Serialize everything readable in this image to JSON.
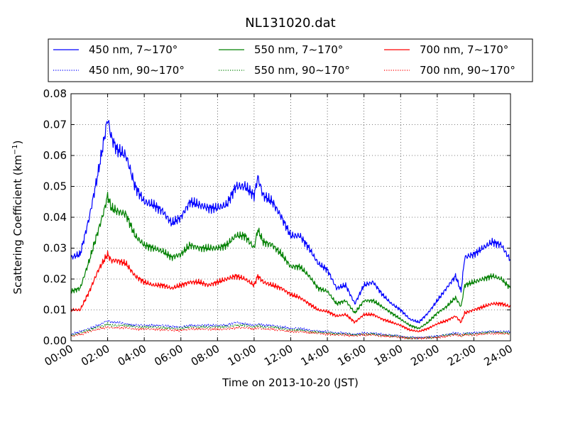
{
  "chart_data": {
    "type": "line",
    "title": "NL131020.dat",
    "xlabel": "Time on 2013-10-20 (JST)",
    "ylabel": "Scattering Coefficient (km",
    "ylabel_sup": "−1",
    "ylabel_close": ")",
    "xlim": [
      0,
      24
    ],
    "ylim": [
      0,
      0.08
    ],
    "grid": true,
    "legend_position": "top (above plot)",
    "x_ticks": [
      0,
      2,
      4,
      6,
      8,
      10,
      12,
      14,
      16,
      18,
      20,
      22,
      24
    ],
    "x_tick_labels": [
      "00:00",
      "02:00",
      "04:00",
      "06:00",
      "08:00",
      "10:00",
      "12:00",
      "14:00",
      "16:00",
      "18:00",
      "20:00",
      "22:00",
      "24:00"
    ],
    "y_ticks": [
      0,
      0.01,
      0.02,
      0.03,
      0.04,
      0.05,
      0.06,
      0.07,
      0.08
    ],
    "y_tick_labels": [
      "0.00",
      "0.01",
      "0.02",
      "0.03",
      "0.04",
      "0.05",
      "0.06",
      "0.07",
      "0.08"
    ],
    "x": [
      0,
      0.5,
      1,
      1.5,
      1.8,
      2,
      2.2,
      2.5,
      3,
      3.5,
      4,
      4.5,
      5,
      5.5,
      6,
      6.5,
      7,
      7.5,
      8,
      8.5,
      9,
      9.5,
      10,
      10.2,
      10.5,
      11,
      11.5,
      12,
      12.5,
      13,
      13.5,
      14,
      14.5,
      15,
      15.5,
      16,
      16.5,
      17,
      17.5,
      18,
      18.5,
      19,
      19.5,
      20,
      20.5,
      21,
      21.3,
      21.5,
      22,
      22.5,
      23,
      23.5,
      24
    ],
    "series": [
      {
        "name": "450 nm, 7∼170°",
        "color": "#0000ff",
        "style": "solid",
        "values": [
          0.027,
          0.028,
          0.04,
          0.055,
          0.065,
          0.072,
          0.066,
          0.062,
          0.06,
          0.05,
          0.045,
          0.044,
          0.042,
          0.038,
          0.04,
          0.045,
          0.044,
          0.043,
          0.043,
          0.044,
          0.05,
          0.05,
          0.047,
          0.053,
          0.047,
          0.045,
          0.04,
          0.034,
          0.034,
          0.03,
          0.025,
          0.023,
          0.017,
          0.018,
          0.012,
          0.018,
          0.019,
          0.015,
          0.012,
          0.01,
          0.007,
          0.006,
          0.009,
          0.013,
          0.017,
          0.021,
          0.016,
          0.027,
          0.028,
          0.03,
          0.032,
          0.031,
          0.026
        ]
      },
      {
        "name": "450 nm, 90∼170°",
        "color": "#0000ff",
        "style": "dotted",
        "values": [
          0.002,
          0.003,
          0.004,
          0.005,
          0.006,
          0.0065,
          0.006,
          0.006,
          0.0055,
          0.005,
          0.005,
          0.005,
          0.005,
          0.0045,
          0.0045,
          0.005,
          0.005,
          0.005,
          0.005,
          0.005,
          0.006,
          0.0055,
          0.005,
          0.0055,
          0.005,
          0.005,
          0.0045,
          0.004,
          0.004,
          0.0035,
          0.003,
          0.003,
          0.0025,
          0.0025,
          0.002,
          0.0025,
          0.0025,
          0.002,
          0.0018,
          0.0015,
          0.001,
          0.001,
          0.0012,
          0.0015,
          0.002,
          0.0025,
          0.002,
          0.0025,
          0.0025,
          0.0028,
          0.003,
          0.003,
          0.0028
        ]
      },
      {
        "name": "550 nm, 7∼170°",
        "color": "#008000",
        "style": "solid",
        "values": [
          0.016,
          0.017,
          0.026,
          0.036,
          0.042,
          0.047,
          0.043,
          0.042,
          0.041,
          0.034,
          0.031,
          0.03,
          0.029,
          0.027,
          0.028,
          0.031,
          0.03,
          0.03,
          0.03,
          0.031,
          0.034,
          0.034,
          0.03,
          0.036,
          0.032,
          0.031,
          0.028,
          0.024,
          0.024,
          0.021,
          0.017,
          0.016,
          0.012,
          0.013,
          0.009,
          0.013,
          0.013,
          0.011,
          0.009,
          0.007,
          0.005,
          0.004,
          0.006,
          0.009,
          0.011,
          0.014,
          0.011,
          0.018,
          0.019,
          0.02,
          0.021,
          0.02,
          0.017
        ]
      },
      {
        "name": "550 nm, 90∼170°",
        "color": "#008000",
        "style": "dotted",
        "values": [
          0.0018,
          0.0025,
          0.0035,
          0.0045,
          0.005,
          0.0055,
          0.005,
          0.005,
          0.005,
          0.0045,
          0.0045,
          0.0045,
          0.0042,
          0.004,
          0.004,
          0.0045,
          0.0045,
          0.0045,
          0.0045,
          0.0045,
          0.005,
          0.005,
          0.0045,
          0.005,
          0.0045,
          0.0045,
          0.004,
          0.0035,
          0.0035,
          0.003,
          0.0028,
          0.0025,
          0.0022,
          0.0022,
          0.0018,
          0.0022,
          0.0022,
          0.0018,
          0.0016,
          0.0013,
          0.0009,
          0.0009,
          0.001,
          0.0013,
          0.0018,
          0.0022,
          0.0018,
          0.0022,
          0.0022,
          0.0025,
          0.0027,
          0.0027,
          0.0025
        ]
      },
      {
        "name": "700 nm, 7∼170°",
        "color": "#ff0000",
        "style": "solid",
        "values": [
          0.01,
          0.01,
          0.016,
          0.023,
          0.026,
          0.028,
          0.026,
          0.026,
          0.025,
          0.021,
          0.019,
          0.018,
          0.018,
          0.017,
          0.018,
          0.019,
          0.019,
          0.018,
          0.019,
          0.02,
          0.021,
          0.02,
          0.018,
          0.021,
          0.019,
          0.018,
          0.017,
          0.015,
          0.014,
          0.012,
          0.01,
          0.0095,
          0.008,
          0.0085,
          0.006,
          0.0085,
          0.0085,
          0.007,
          0.006,
          0.005,
          0.0035,
          0.003,
          0.004,
          0.0055,
          0.0065,
          0.008,
          0.006,
          0.009,
          0.01,
          0.011,
          0.012,
          0.012,
          0.011
        ]
      },
      {
        "name": "700 nm, 90∼170°",
        "color": "#ff0000",
        "style": "dotted",
        "values": [
          0.0015,
          0.002,
          0.003,
          0.0038,
          0.0042,
          0.0045,
          0.0042,
          0.0042,
          0.0042,
          0.0038,
          0.0038,
          0.0038,
          0.0036,
          0.0034,
          0.0034,
          0.0038,
          0.0038,
          0.0038,
          0.0038,
          0.0038,
          0.0042,
          0.0042,
          0.0038,
          0.0042,
          0.0038,
          0.0038,
          0.0034,
          0.003,
          0.003,
          0.0026,
          0.0024,
          0.0022,
          0.0019,
          0.0019,
          0.0016,
          0.0019,
          0.0019,
          0.0016,
          0.0014,
          0.0011,
          0.0008,
          0.0008,
          0.0009,
          0.0011,
          0.0015,
          0.0019,
          0.0016,
          0.0019,
          0.0019,
          0.0022,
          0.0024,
          0.0024,
          0.0022
        ]
      }
    ]
  }
}
